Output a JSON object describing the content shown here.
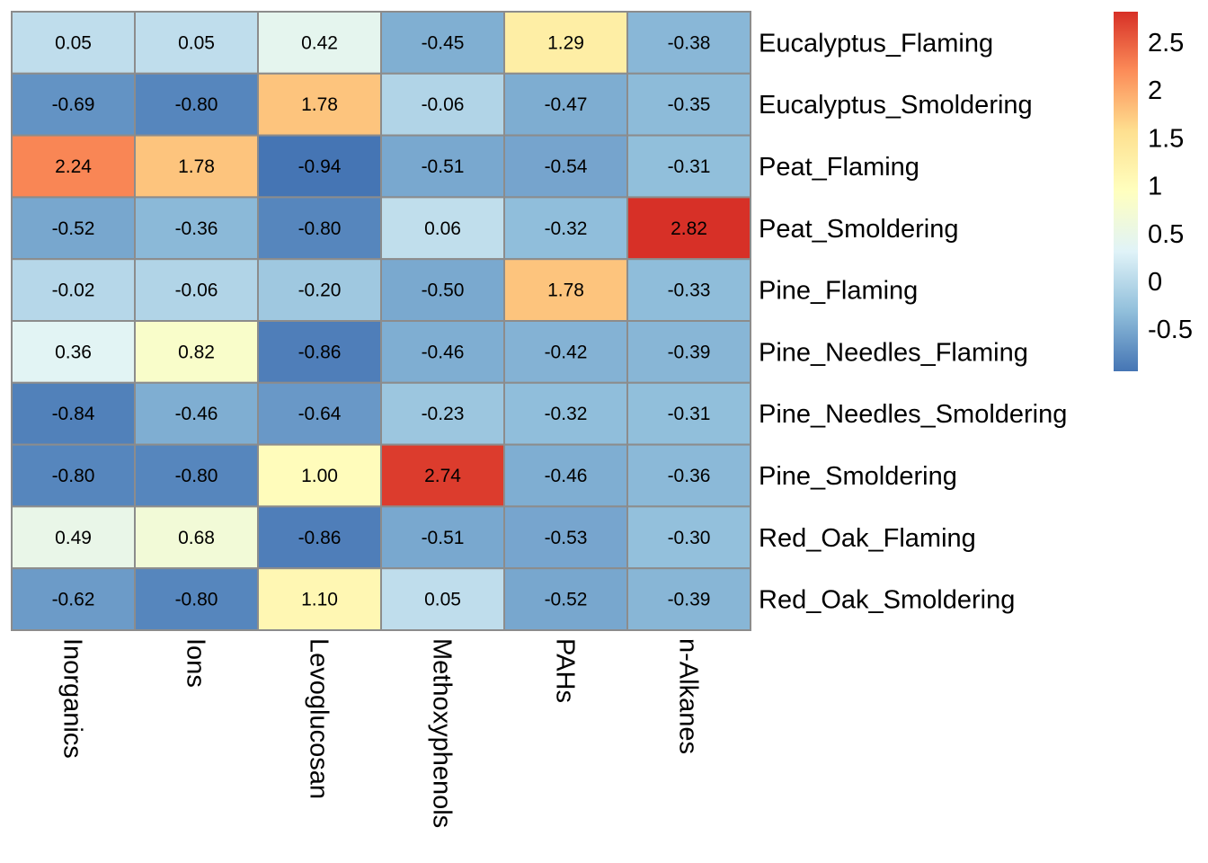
{
  "chart_data": {
    "type": "heatmap",
    "title": "",
    "rows": [
      "Eucalyptus_Flaming",
      "Eucalyptus_Smoldering",
      "Peat_Flaming",
      "Peat_Smoldering",
      "Pine_Flaming",
      "Pine_Needles_Flaming",
      "Pine_Needles_Smoldering",
      "Pine_Smoldering",
      "Red_Oak_Flaming",
      "Red_Oak_Smoldering"
    ],
    "columns": [
      "Inorganics",
      "Ions",
      "Levoglucosan",
      "Methoxyphenols",
      "PAHs",
      "n-Alkanes"
    ],
    "values": [
      [
        0.05,
        0.05,
        0.42,
        -0.45,
        1.29,
        -0.38
      ],
      [
        -0.69,
        -0.8,
        1.78,
        -0.06,
        -0.47,
        -0.35
      ],
      [
        2.24,
        1.78,
        -0.94,
        -0.51,
        -0.54,
        -0.31
      ],
      [
        -0.52,
        -0.36,
        -0.8,
        0.06,
        -0.32,
        2.82
      ],
      [
        -0.02,
        -0.06,
        -0.2,
        -0.5,
        1.78,
        -0.33
      ],
      [
        0.36,
        0.82,
        -0.86,
        -0.46,
        -0.42,
        -0.39
      ],
      [
        -0.84,
        -0.46,
        -0.64,
        -0.23,
        -0.32,
        -0.31
      ],
      [
        -0.8,
        -0.8,
        1.0,
        2.74,
        -0.46,
        -0.36
      ],
      [
        0.49,
        0.68,
        -0.86,
        -0.51,
        -0.53,
        -0.3
      ],
      [
        -0.62,
        -0.8,
        1.1,
        0.05,
        -0.52,
        -0.39
      ]
    ],
    "legend": {
      "placement": "top-right",
      "range": [
        -0.94,
        2.82
      ],
      "ticks": [
        2.5,
        2,
        1.5,
        1,
        0.5,
        0,
        -0.5
      ],
      "tick_labels": [
        "2.5",
        "2",
        "1.5",
        "1",
        "0.5",
        "0",
        "-0.5"
      ]
    },
    "palette": [
      "#4575B4",
      "#91BFDB",
      "#E0F3F8",
      "#FFFFBF",
      "#FEE090",
      "#FC8D59",
      "#D73027"
    ],
    "border_color": "#8C8C8C",
    "cell_label_color": "#000000"
  }
}
